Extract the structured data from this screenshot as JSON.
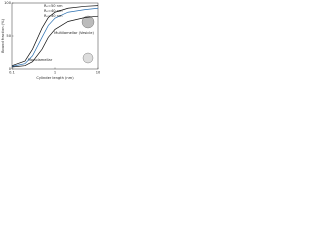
{
  "chart_data": {
    "type": "line",
    "x_label": "Cylinder length (nm)",
    "y_label": "Bound fraction (%)",
    "x": [
      0.1,
      0.2,
      0.3,
      0.5,
      0.7,
      1,
      2,
      5,
      10
    ],
    "series": [
      {
        "name": "R₀=50 nm",
        "color": "#111111",
        "values": [
          5,
          12,
          30,
          62,
          78,
          86,
          92,
          95,
          96
        ]
      },
      {
        "name": "R₀=40 nm",
        "color": "#2a6fb0",
        "values": [
          4,
          8,
          20,
          48,
          66,
          77,
          86,
          90,
          92
        ]
      },
      {
        "name": "R₀=30 nm",
        "color": "#111111",
        "values": [
          3,
          5,
          11,
          30,
          48,
          60,
          72,
          78,
          80
        ]
      }
    ],
    "annotations": [
      "Multilamellar (Vesicle)",
      "Monolamellar"
    ],
    "log_x": true,
    "xlim": [
      0.1,
      10
    ],
    "xticks": [
      0.1,
      1,
      10
    ],
    "ylim": [
      0,
      100
    ],
    "yticks": [
      0,
      50,
      100
    ]
  }
}
